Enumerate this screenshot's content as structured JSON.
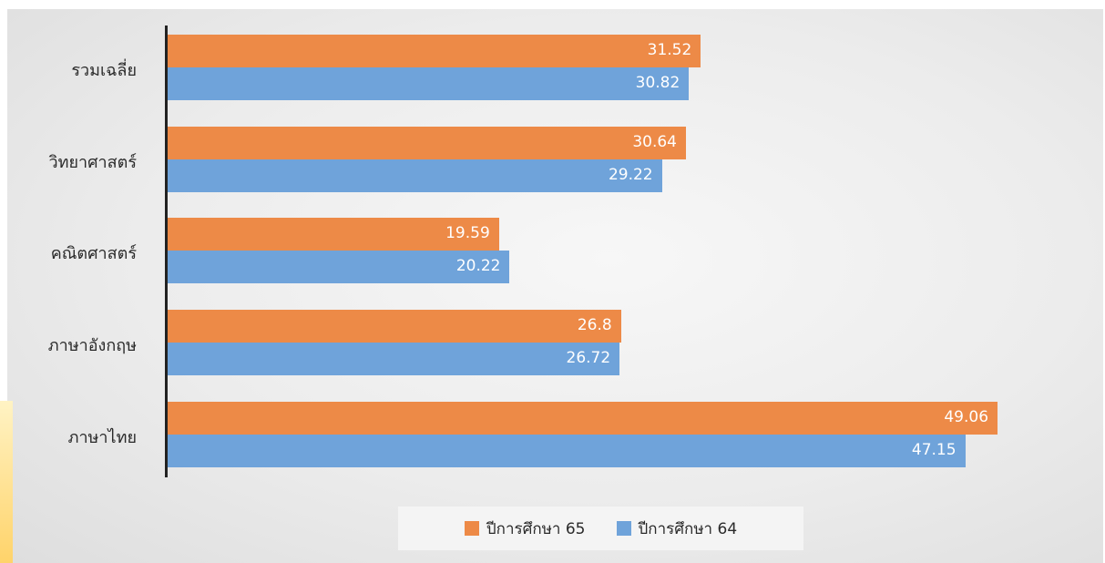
{
  "chart_data": {
    "type": "bar",
    "orientation": "horizontal",
    "categories": [
      "รวมเฉลี่ย",
      "วิทยาศาสตร์",
      "คณิตศาสตร์",
      "ภาษาอังกฤษ",
      "ภาษาไทย"
    ],
    "series": [
      {
        "name": "ปีการศึกษา 65",
        "color": "#ED8A47",
        "values": [
          31.52,
          30.64,
          19.59,
          26.8,
          49.06
        ]
      },
      {
        "name": "ปีการศึกษา 64",
        "color": "#6FA3DA",
        "values": [
          30.82,
          29.22,
          20.22,
          26.72,
          47.15
        ]
      }
    ],
    "xlim": [
      0,
      56
    ],
    "grid": false,
    "legend_position": "bottom",
    "data_labels": true
  }
}
